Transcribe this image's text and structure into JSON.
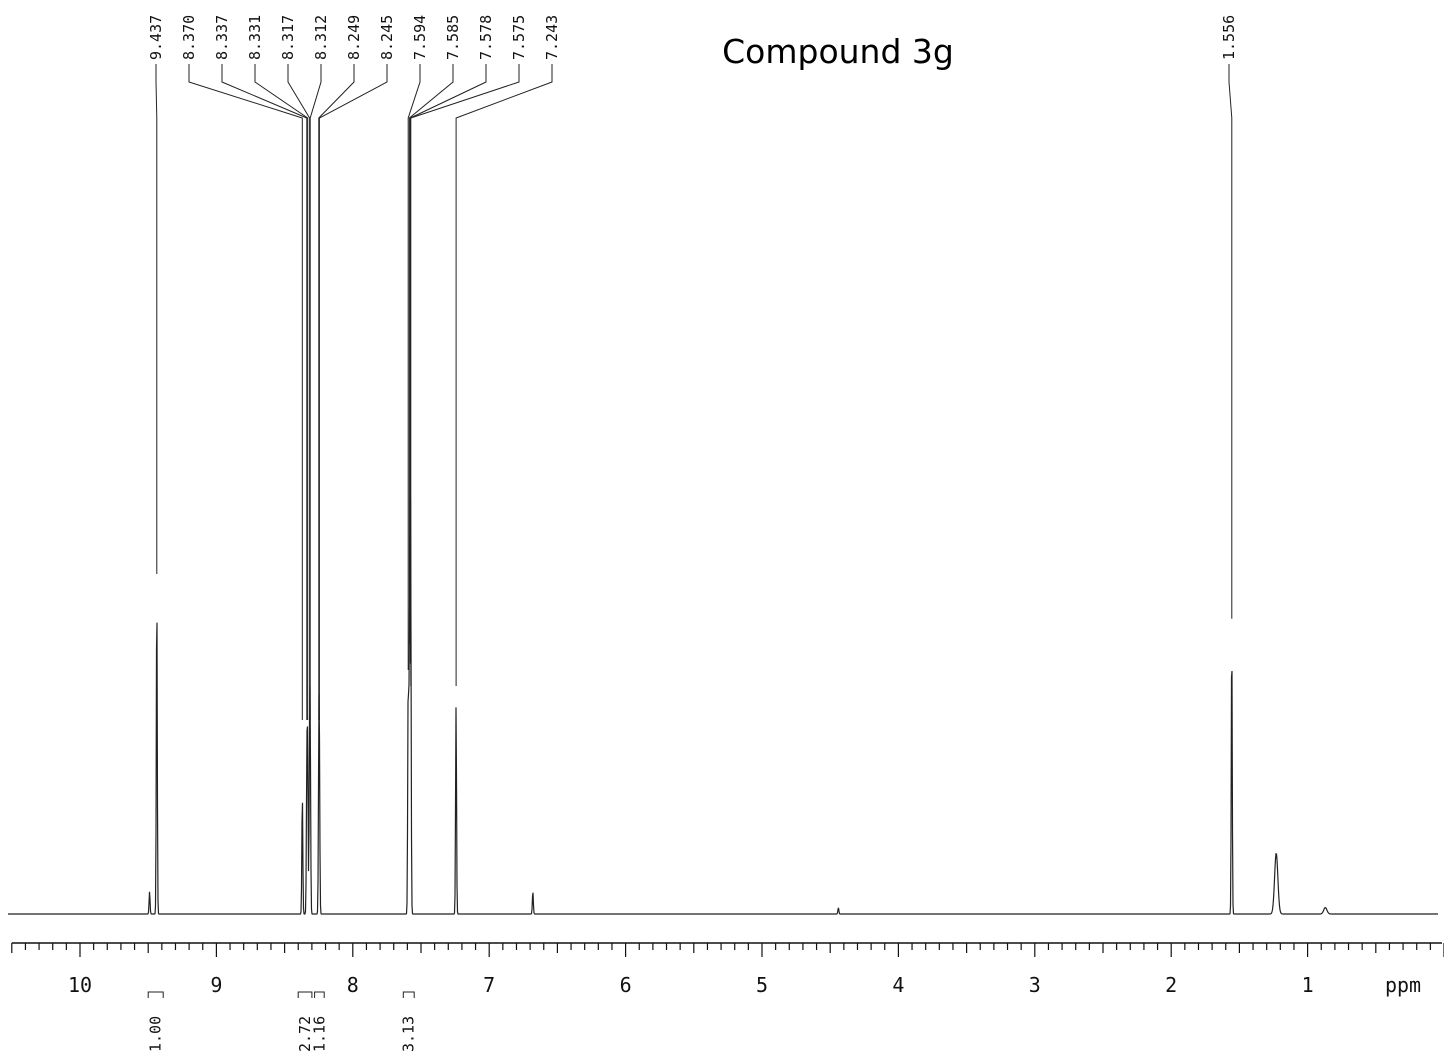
{
  "chart_data": {
    "type": "line",
    "title": "Compound 3g",
    "xlabel": "ppm",
    "xlim": [
      10.5,
      0.0
    ],
    "x_axis_reversed": true,
    "grid": false,
    "major_ticks": [
      10,
      9,
      8,
      7,
      6,
      5,
      4,
      3,
      2,
      1
    ],
    "peak_labels": [
      "9.437",
      "8.370",
      "8.337",
      "8.331",
      "8.317",
      "8.312",
      "8.249",
      "8.245",
      "7.594",
      "7.585",
      "7.578",
      "7.575",
      "7.243",
      "1.556"
    ],
    "series": [
      {
        "x": [
          9.49,
          9.437,
          8.37,
          8.337,
          8.331,
          8.317,
          8.312,
          8.249,
          8.245,
          7.594,
          7.585,
          7.578,
          7.575,
          7.243,
          6.68,
          4.44,
          1.556,
          1.23,
          0.87
        ],
        "y": [
          0.07,
          1.0,
          0.37,
          0.42,
          0.45,
          0.47,
          0.46,
          0.42,
          0.4,
          0.7,
          0.78,
          0.72,
          0.65,
          0.65,
          0.07,
          0.02,
          0.86,
          0.19,
          0.02
        ]
      }
    ],
    "integrals": [
      {
        "value": "1.00",
        "from": 9.5,
        "to": 9.39
      },
      {
        "value": "2.72",
        "from": 8.4,
        "to": 8.3
      },
      {
        "value": "1.16",
        "from": 8.28,
        "to": 8.21
      },
      {
        "value": "3.13",
        "from": 7.63,
        "to": 7.55
      }
    ]
  }
}
